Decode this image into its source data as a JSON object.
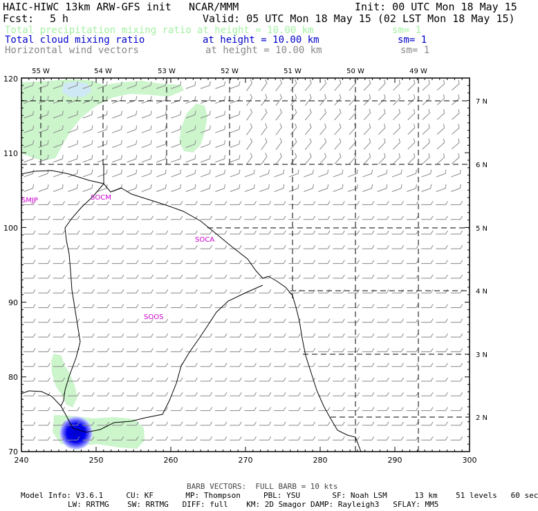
{
  "header": {
    "model_title": "HAIC-HIWC 13km ARW-GFS init",
    "center": "NCAR/MMM",
    "init": "Init: 00 UTC Mon 18 May 15",
    "fcst_label": "Fcst:",
    "fcst_value": "5 h",
    "valid": "Valid: 05 UTC Mon 18 May 15 (02 LST Mon 18 May 15)"
  },
  "fields": [
    {
      "name": "Total precipitation mixing ratio",
      "level": "at height = 10.00 km",
      "sm": "sm= 1",
      "color": "#a4f0a4"
    },
    {
      "name": "Total cloud mixing ratio",
      "level": "at height = 10.00 km",
      "sm": "sm= 1",
      "color": "#0000cc"
    },
    {
      "name": "Horizontal wind vectors",
      "level": "at height = 10.00 km",
      "sm": "sm= 1",
      "color": "#888888"
    }
  ],
  "map": {
    "x_ticks": [
      "240",
      "250",
      "260",
      "270",
      "280",
      "290",
      "300"
    ],
    "y_ticks": [
      "70",
      "80",
      "90",
      "100",
      "110",
      "120"
    ],
    "lon_labels": [
      "55 W",
      "54 W",
      "53 W",
      "52 W",
      "51 W",
      "50 W",
      "49 W"
    ],
    "lat_labels": [
      "7 N",
      "6 N",
      "5 N",
      "4 N",
      "3 N",
      "2 N"
    ],
    "stations": [
      "SMJP",
      "SOCM",
      "SOCA",
      "SOOS"
    ],
    "colors": {
      "station": "#cc00cc",
      "barb": "#888888",
      "coast": "#000000",
      "precip": "#ccf5cc",
      "cloud": "#0000dd"
    }
  },
  "footer": {
    "barb_note": "BARB VECTORS:  FULL BARB = 10 kts",
    "line1": "Model Info: V3.6.1     CU: KF       MP: Thompson     PBL: YSU       SF: Noah LSM      13 km    51 levels   60 sec",
    "line2": "LW: RRTMG    SW: RRTMG   DIFF: full    KM: 2D Smagor DAMP: Rayleigh3   SFLAY: MM5"
  }
}
